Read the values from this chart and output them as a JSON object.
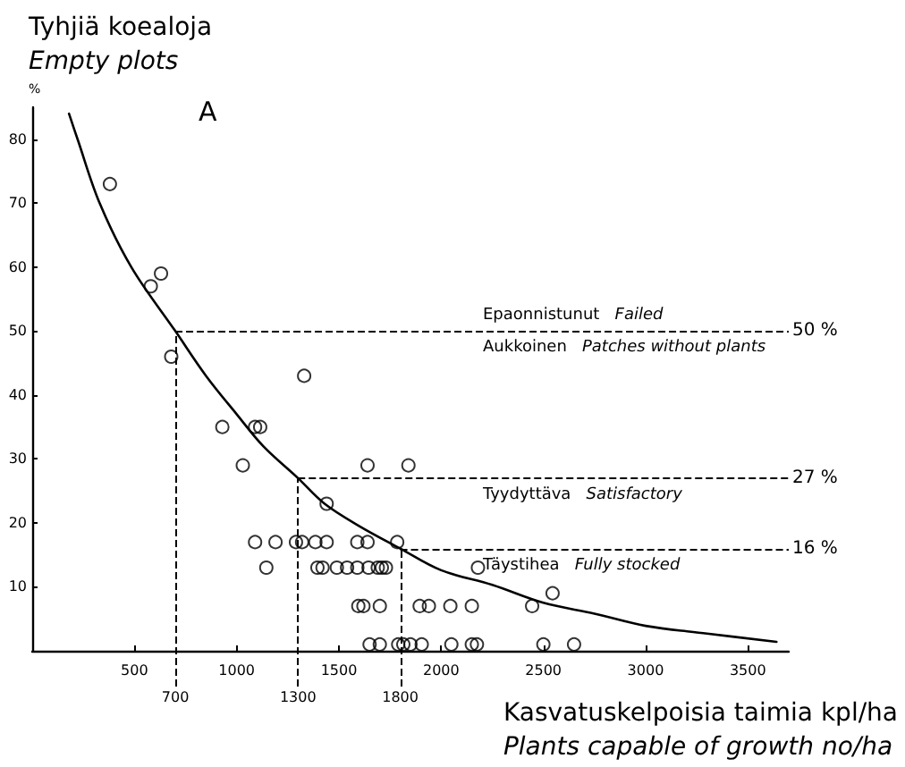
{
  "chart_data": {
    "type": "scatter",
    "title": "A",
    "ylabel": "Tyhjiä koealoja\nEmpty plots\n%",
    "xlabel": "Kasvatuskelpoisia taimia kpl/ha\nPlants capable of growth no/ha",
    "xlim": [
      0,
      3700
    ],
    "xticks": [
      500,
      1000,
      1500,
      2000,
      2500,
      3000,
      3500
    ],
    "ylim": [
      0,
      85
    ],
    "yticks": [
      10,
      20,
      30,
      40,
      50,
      60,
      70,
      80
    ],
    "grid": false,
    "marker": "circle",
    "series": [
      {
        "color": "#000000",
        "x": [
          380,
          580,
          630,
          680,
          930,
          1030,
          1090,
          1115,
          1330,
          1440,
          1640,
          1840,
          1090,
          1190,
          1290,
          1320,
          1385,
          1440,
          1590,
          1640,
          1785,
          1145,
          1395,
          1420,
          1490,
          1540,
          1590,
          1645,
          1690,
          1710,
          1730,
          2180,
          1595,
          1620,
          1700,
          1895,
          1940,
          2045,
          2150,
          2445,
          2545,
          1650,
          1700,
          1790,
          1815,
          1850,
          1905,
          2050,
          2150,
          2175,
          2500,
          2650
        ],
        "values": [
          73,
          57,
          59,
          46,
          35,
          29,
          35,
          35,
          43,
          23,
          29,
          29,
          17,
          17,
          17,
          17,
          17,
          17,
          17,
          17,
          17,
          13,
          13,
          13,
          13,
          13,
          13,
          13,
          13,
          13,
          13,
          13,
          7,
          7,
          7,
          7,
          7,
          7,
          7,
          7,
          9,
          1,
          1,
          1,
          1,
          1,
          1,
          1,
          1,
          1,
          1,
          1
        ]
      },
      {
        "type": "line",
        "color": "#000000",
        "marker": "none",
        "line_style": "solid",
        "x": [
          180,
          222,
          330,
          485,
          700,
          850,
          1000,
          1130,
          1300,
          1430,
          1600,
          1800,
          2000,
          2250,
          2500,
          2750,
          3000,
          3300,
          3640
        ],
        "values": [
          84,
          80,
          70,
          60,
          50,
          43,
          37,
          32,
          27,
          23,
          19.5,
          16,
          12.6,
          10.3,
          7.5,
          5.8,
          3.9,
          2.7,
          1.4
        ]
      }
    ],
    "ref_lines": [
      {
        "axis": "x",
        "value": 700,
        "label": "700",
        "color": "#000000",
        "line_style": "dashed"
      },
      {
        "axis": "x",
        "value": 1300,
        "label": "1300",
        "color": "#000000",
        "line_style": "dashed"
      },
      {
        "axis": "x",
        "value": 1800,
        "label": "1800",
        "color": "#000000",
        "line_style": "dashed"
      },
      {
        "axis": "y",
        "value": 50,
        "label": "50 %",
        "color": "#000000",
        "line_style": "dashed"
      },
      {
        "axis": "y",
        "value": 27,
        "label": "27 %",
        "color": "#000000",
        "line_style": "dashed"
      },
      {
        "axis": "y",
        "value": 16,
        "label": "16 %",
        "color": "#000000",
        "line_style": "dashed"
      }
    ],
    "annotations": [
      "Epaonnistunut  Failed",
      "Aukkoinen  Patches without plants",
      "Tyydyttäva  Satisfactory",
      "Täystihea  Fully stocked"
    ]
  }
}
